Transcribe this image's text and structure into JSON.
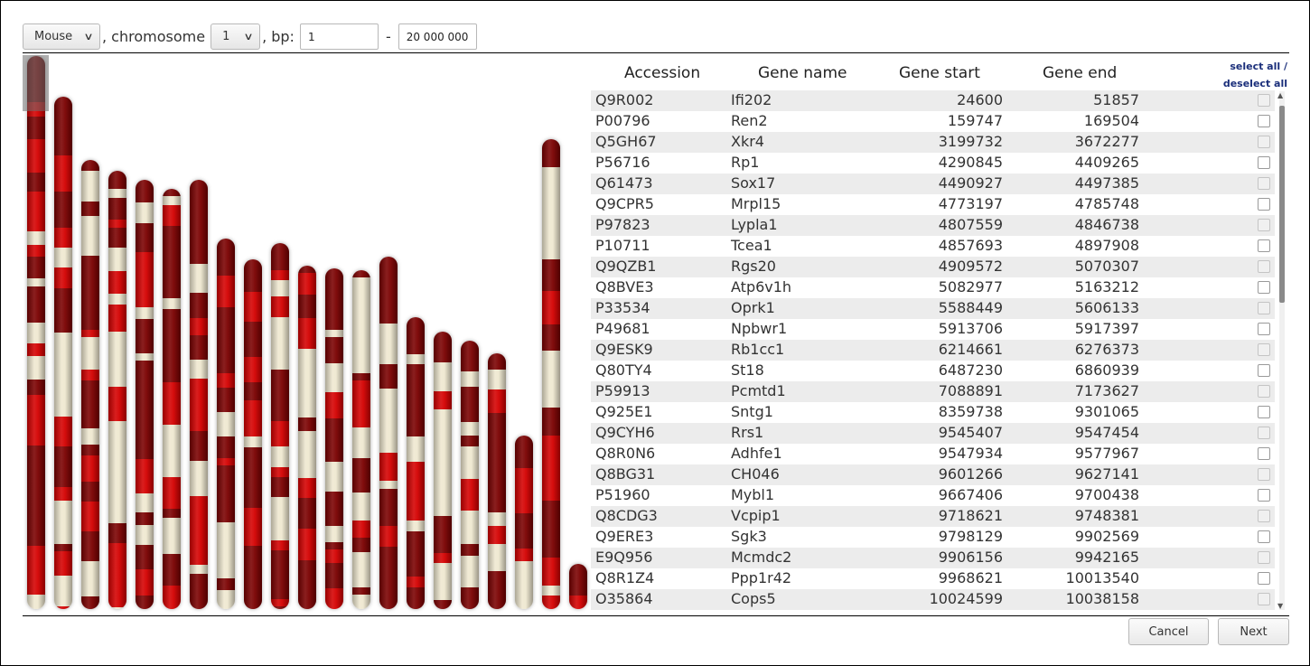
{
  "controls": {
    "species": "Mouse",
    "chromosome_prefix": ", chromosome",
    "chromosome": "1",
    "bp_prefix": ", bp:",
    "bp_from": "1",
    "range_separator": "-",
    "bp_to": "20 000 000"
  },
  "table": {
    "headers": {
      "accession": "Accession",
      "gene_name": "Gene name",
      "gene_start": "Gene start",
      "gene_end": "Gene end"
    },
    "select_all": "select all /",
    "deselect_all": "deselect all",
    "rows": [
      {
        "accession": "Q9R002",
        "gene_name": "Ifi202",
        "start": "24600",
        "end": "51857"
      },
      {
        "accession": "P00796",
        "gene_name": "Ren2",
        "start": "159747",
        "end": "169504"
      },
      {
        "accession": "Q5GH67",
        "gene_name": "Xkr4",
        "start": "3199732",
        "end": "3672277"
      },
      {
        "accession": "P56716",
        "gene_name": "Rp1",
        "start": "4290845",
        "end": "4409265"
      },
      {
        "accession": "Q61473",
        "gene_name": "Sox17",
        "start": "4490927",
        "end": "4497385"
      },
      {
        "accession": "Q9CPR5",
        "gene_name": "Mrpl15",
        "start": "4773197",
        "end": "4785748"
      },
      {
        "accession": "P97823",
        "gene_name": "Lypla1",
        "start": "4807559",
        "end": "4846738"
      },
      {
        "accession": "P10711",
        "gene_name": "Tcea1",
        "start": "4857693",
        "end": "4897908"
      },
      {
        "accession": "Q9QZB1",
        "gene_name": "Rgs20",
        "start": "4909572",
        "end": "5070307"
      },
      {
        "accession": "Q8BVE3",
        "gene_name": "Atp6v1h",
        "start": "5082977",
        "end": "5163212"
      },
      {
        "accession": "P33534",
        "gene_name": "Oprk1",
        "start": "5588449",
        "end": "5606133"
      },
      {
        "accession": "P49681",
        "gene_name": "Npbwr1",
        "start": "5913706",
        "end": "5917397"
      },
      {
        "accession": "Q9ESK9",
        "gene_name": "Rb1cc1",
        "start": "6214661",
        "end": "6276373"
      },
      {
        "accession": "Q80TY4",
        "gene_name": "St18",
        "start": "6487230",
        "end": "6860939"
      },
      {
        "accession": "P59913",
        "gene_name": "Pcmtd1",
        "start": "7088891",
        "end": "7173627"
      },
      {
        "accession": "Q925E1",
        "gene_name": "Sntg1",
        "start": "8359738",
        "end": "9301065"
      },
      {
        "accession": "Q9CYH6",
        "gene_name": "Rrs1",
        "start": "9545407",
        "end": "9547454"
      },
      {
        "accession": "Q8R0N6",
        "gene_name": "Adhfe1",
        "start": "9547934",
        "end": "9577967"
      },
      {
        "accession": "Q8BG31",
        "gene_name": "CH046",
        "start": "9601266",
        "end": "9627141"
      },
      {
        "accession": "P51960",
        "gene_name": "Mybl1",
        "start": "9667406",
        "end": "9700438"
      },
      {
        "accession": "Q8CDG3",
        "gene_name": "Vcpip1",
        "start": "9718621",
        "end": "9748381"
      },
      {
        "accession": "Q9ERE3",
        "gene_name": "Sgk3",
        "start": "9798129",
        "end": "9902569"
      },
      {
        "accession": "E9Q956",
        "gene_name": "Mcmdc2",
        "start": "9906156",
        "end": "9942165"
      },
      {
        "accession": "Q8R1Z4",
        "gene_name": "Ppp1r42",
        "start": "9968621",
        "end": "10013540"
      },
      {
        "accession": "O35864",
        "gene_name": "Cops5",
        "start": "10024599",
        "end": "10038158"
      }
    ]
  },
  "buttons": {
    "cancel": "Cancel",
    "next": "Next"
  },
  "colors": {
    "band_dark": "#7a0000",
    "band_red": "#d40000",
    "band_light": "#efe8d0",
    "link": "#1a2e7a"
  }
}
